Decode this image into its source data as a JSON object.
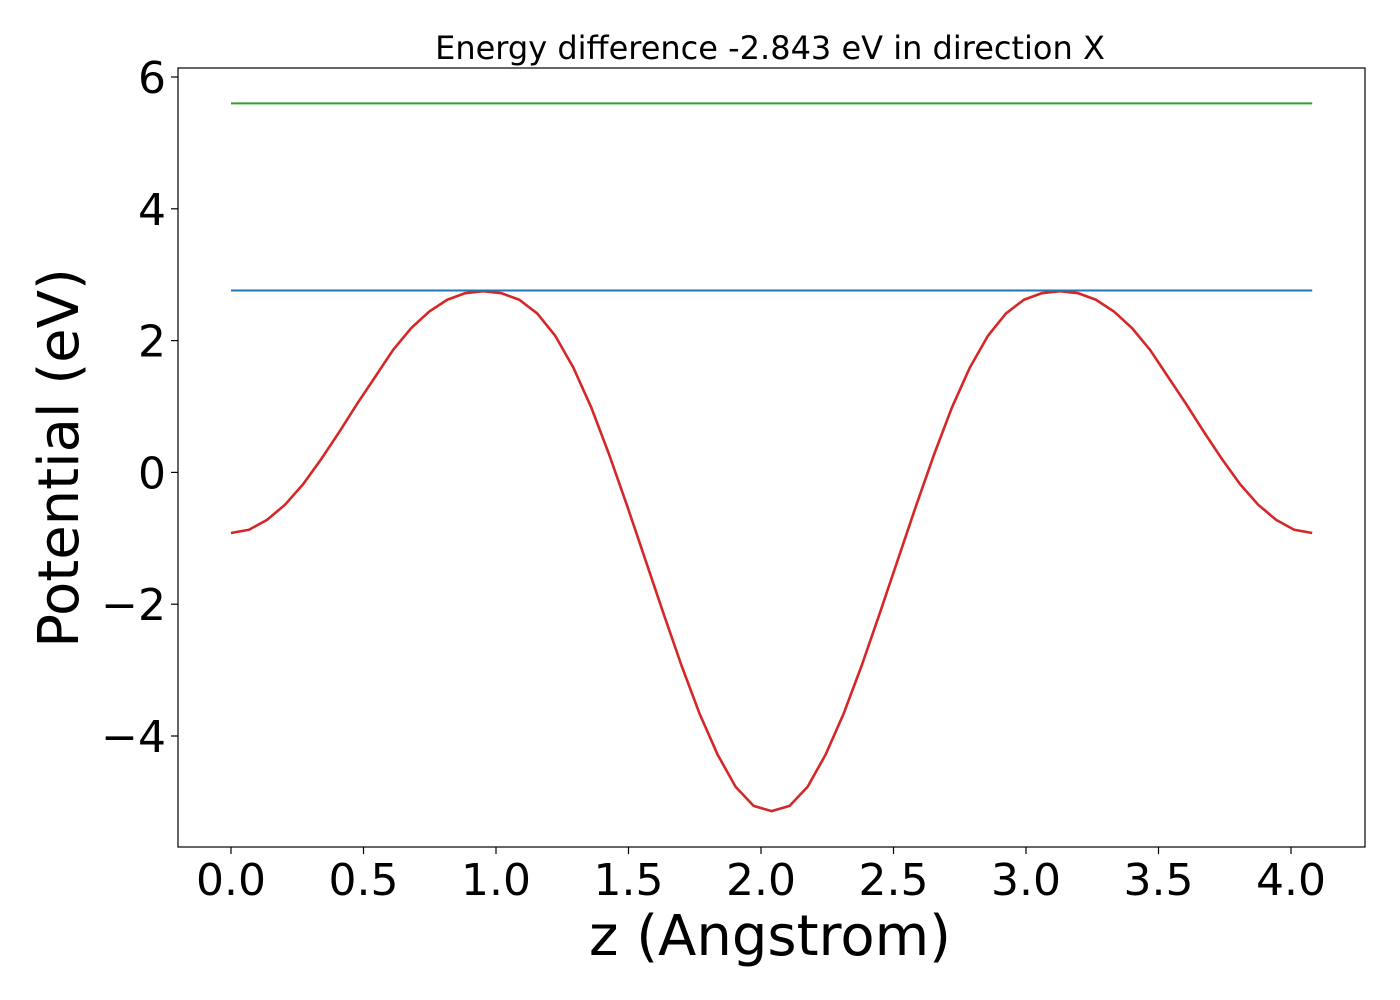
{
  "chart_data": {
    "type": "line",
    "title": "Energy difference -2.843 eV in direction X",
    "xlabel": "z (Angstrom)",
    "ylabel": "Potential (eV)",
    "xlim": [
      -0.2,
      4.08
    ],
    "ylim": [
      -5.7,
      6.2
    ],
    "xticks": [
      0.0,
      0.5,
      1.0,
      1.5,
      2.0,
      2.5,
      3.0,
      3.5,
      4.0
    ],
    "xtick_labels": [
      "0.0",
      "0.5",
      "1.0",
      "1.5",
      "2.0",
      "2.5",
      "3.0",
      "3.5",
      "4.0"
    ],
    "yticks": [
      -4,
      -2,
      0,
      2,
      4,
      6
    ],
    "ytick_labels": [
      "−4",
      "−2",
      "0",
      "2",
      "4",
      "6"
    ],
    "grid": false,
    "legend": "none",
    "series": [
      {
        "color": "#d62728",
        "kind": "curve",
        "x": [
          0.0,
          0.068,
          0.136,
          0.204,
          0.272,
          0.34,
          0.408,
          0.476,
          0.544,
          0.612,
          0.68,
          0.748,
          0.816,
          0.884,
          0.952,
          1.02,
          1.088,
          1.156,
          1.224,
          1.292,
          1.36,
          1.428,
          1.496,
          1.564,
          1.632,
          1.7,
          1.768,
          1.836,
          1.904,
          1.972,
          2.04,
          2.108,
          2.176,
          2.244,
          2.312,
          2.38,
          2.448,
          2.516,
          2.584,
          2.652,
          2.72,
          2.788,
          2.856,
          2.924,
          2.992,
          3.06,
          3.128,
          3.196,
          3.264,
          3.332,
          3.4,
          3.468,
          3.536,
          3.604,
          3.672,
          3.74,
          3.808,
          3.876,
          3.944,
          4.012,
          4.08
        ],
        "y": [
          -0.92,
          -0.87,
          -0.72,
          -0.49,
          -0.18,
          0.2,
          0.61,
          1.04,
          1.45,
          1.86,
          2.19,
          2.44,
          2.62,
          2.72,
          2.75,
          2.72,
          2.62,
          2.41,
          2.07,
          1.59,
          0.98,
          0.26,
          -0.52,
          -1.33,
          -2.14,
          -2.93,
          -3.66,
          -4.28,
          -4.77,
          -5.06,
          -5.14,
          -5.06,
          -4.77,
          -4.28,
          -3.66,
          -2.93,
          -2.14,
          -1.33,
          -0.52,
          0.26,
          0.98,
          1.59,
          2.07,
          2.41,
          2.62,
          2.72,
          2.75,
          2.72,
          2.62,
          2.44,
          2.19,
          1.86,
          1.45,
          1.04,
          0.61,
          0.2,
          -0.18,
          -0.49,
          -0.72,
          -0.87,
          -0.92
        ]
      },
      {
        "color": "#1f77b4",
        "kind": "horizontal",
        "x": [
          0.0,
          4.08
        ],
        "y": [
          2.76,
          2.76
        ]
      },
      {
        "color": "#2ca02c",
        "kind": "horizontal",
        "x": [
          0.0,
          4.08
        ],
        "y": [
          5.6,
          5.6
        ]
      }
    ]
  }
}
